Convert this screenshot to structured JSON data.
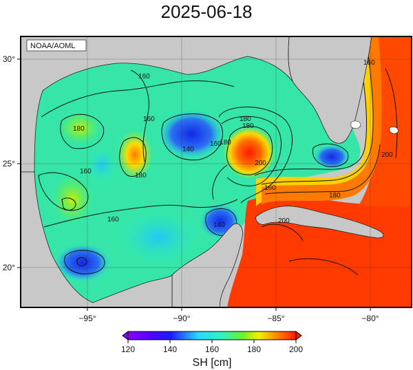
{
  "title": "2025-06-18",
  "credit": "NOAA/AOML",
  "colorbar": {
    "title": "SH [cm]",
    "ticks": [
      "120",
      "140",
      "160",
      "180",
      "200"
    ],
    "min": 120,
    "max": 200
  },
  "axes": {
    "lon_labels": [
      "−95°",
      "−90°",
      "−85°",
      "−80°"
    ],
    "lat_labels": [
      "30°",
      "25°",
      "20°"
    ]
  },
  "contour_labels": [
    "160",
    "160",
    "180",
    "180",
    "160",
    "180",
    "140",
    "160",
    "180",
    "160",
    "140",
    "180",
    "200",
    "160",
    "180",
    "200",
    "160",
    "200"
  ],
  "colors": {
    "land": "#c8c8c8",
    "low": "#2a2ae0",
    "mid": "#26e0e8",
    "high": "#ff2a00"
  }
}
